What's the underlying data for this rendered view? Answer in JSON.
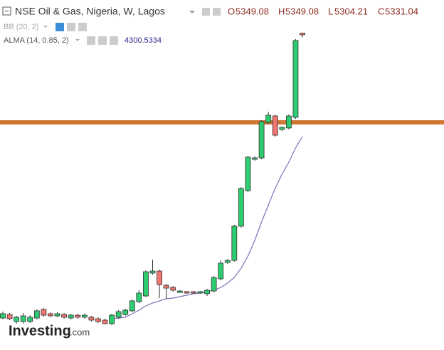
{
  "chart_data": {
    "type": "candlestick",
    "title": "NSE Oil & Gas, Nigeria, W, Lagos",
    "ohlc_keys": [
      "O",
      "H",
      "L",
      "C"
    ],
    "indicators": [
      "BB (20, 2)",
      "ALMA (14, 0.85, 2)"
    ],
    "watermark": [
      "Investing",
      ".com"
    ],
    "ylim": [
      2137,
      5684
    ],
    "up_color": "#2ecc71",
    "down_color": "#f07470",
    "open": [
      2461,
      2497,
      2425,
      2425,
      2425,
      2461,
      2548,
      2505,
      2483,
      2497,
      2461,
      2490,
      2469,
      2469,
      2454,
      2440,
      2404,
      2469,
      2497,
      2534,
      2627,
      2685,
      2916,
      2937,
      2793,
      2771,
      2721,
      2728,
      2728,
      2714,
      2707,
      2735,
      2858,
      3024,
      3045,
      3392,
      3752,
      4069,
      4084,
      4444,
      4509,
      4372,
      4387,
      4495,
      5349.08
    ],
    "high": [
      2526,
      2512,
      2483,
      2512,
      2490,
      2548,
      2562,
      2519,
      2519,
      2512,
      2505,
      2505,
      2505,
      2483,
      2469,
      2454,
      2505,
      2541,
      2555,
      2649,
      2743,
      2945,
      3053,
      2952,
      2808,
      2786,
      2743,
      2735,
      2735,
      2735,
      2757,
      2887,
      3045,
      3060,
      3406,
      3788,
      4105,
      4098,
      4466,
      4552,
      4523,
      4401,
      4523,
      5288,
      5349.08
    ],
    "low": [
      2447,
      2440,
      2404,
      2404,
      2411,
      2447,
      2476,
      2469,
      2469,
      2454,
      2447,
      2454,
      2454,
      2425,
      2411,
      2397,
      2389,
      2454,
      2483,
      2519,
      2613,
      2671,
      2901,
      2663,
      2656,
      2728,
      2714,
      2707,
      2707,
      2707,
      2685,
      2721,
      2844,
      3010,
      3031,
      3377,
      3738,
      4055,
      4069,
      4430,
      4300,
      4358,
      4372,
      4480,
      5304.21
    ],
    "close": [
      2505,
      2454,
      2469,
      2483,
      2469,
      2534,
      2490,
      2483,
      2505,
      2469,
      2490,
      2469,
      2490,
      2440,
      2425,
      2404,
      2490,
      2526,
      2541,
      2635,
      2714,
      2930,
      2937,
      2800,
      2764,
      2743,
      2735,
      2714,
      2714,
      2728,
      2743,
      2872,
      3017,
      3045,
      3392,
      3774,
      4091,
      4084,
      4451,
      4516,
      4314,
      4394,
      4509,
      5273,
      5331.04
    ],
    "alma": {
      "name": "ALMA (14, 0.85, 2)",
      "color": "#7b72b8",
      "values": [
        null,
        null,
        null,
        null,
        null,
        null,
        null,
        null,
        null,
        null,
        null,
        null,
        null,
        null,
        null,
        null,
        2454,
        2461,
        2469,
        2505,
        2541,
        2584,
        2613,
        2635,
        2656,
        2663,
        2678,
        2692,
        2707,
        2714,
        2728,
        2743,
        2771,
        2815,
        2872,
        2966,
        3089,
        3247,
        3435,
        3608,
        3774,
        3918,
        4040,
        4185,
        4300.5334
      ]
    },
    "hline": {
      "value": 4444,
      "color": "#c8691c"
    }
  }
}
